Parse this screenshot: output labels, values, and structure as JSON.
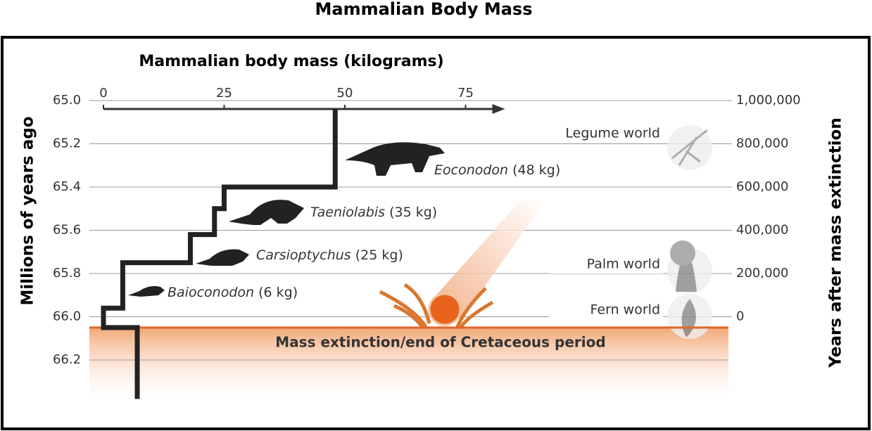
{
  "chart_data": {
    "type": "line",
    "title": "Mammalian Body Mass",
    "x_label": "Mammalian body mass (kilograms)",
    "y_label": "Millions of years ago",
    "y2_label": "Years after mass extinction",
    "xlim": [
      0,
      82
    ],
    "xticks": [
      0,
      25,
      50,
      75
    ],
    "ylim": [
      65.0,
      66.4
    ],
    "yticks": [
      {
        "value": 65.0,
        "label": "65.0"
      },
      {
        "value": 65.2,
        "label": "65.2"
      },
      {
        "value": 65.4,
        "label": "65.4"
      },
      {
        "value": 65.6,
        "label": "65.6"
      },
      {
        "value": 65.8,
        "label": "65.8"
      },
      {
        "value": 66.0,
        "label": "66.0"
      },
      {
        "value": 66.2,
        "label": "66.2"
      }
    ],
    "y2lim": [
      1000000,
      -400000
    ],
    "y2ticks": [
      {
        "value": 1000000,
        "label": "1,000,000"
      },
      {
        "value": 800000,
        "label": "800,000"
      },
      {
        "value": 600000,
        "label": "600,000"
      },
      {
        "value": 400000,
        "label": "400,000"
      },
      {
        "value": 200000,
        "label": "200,000"
      },
      0
    ],
    "grid": true,
    "series": [
      {
        "color": "#222222",
        "x": [
          7,
          7,
          0,
          0,
          4,
          4,
          18,
          18,
          23,
          23,
          25,
          25,
          48,
          48
        ],
        "values": [
          66.38,
          66.05,
          66.05,
          65.96,
          65.96,
          65.75,
          65.75,
          65.62,
          65.62,
          65.5,
          65.5,
          65.4,
          65.4,
          65.04
        ]
      }
    ],
    "extinction": {
      "label": "Mass extinction/end of Cretaceous period",
      "y": 66.05,
      "color": "#e0662a"
    },
    "animals": [
      {
        "name": "Eoconodon",
        "mass": "(48 kg)"
      },
      {
        "name": "Taeniolabis",
        "mass": "(35 kg)"
      },
      {
        "name": "Carsioptychus",
        "mass": "(25 kg)"
      },
      {
        "name": "Baioconodon",
        "mass": "(6 kg)"
      }
    ],
    "worlds": [
      "Legume world",
      "Palm world",
      "Fern world"
    ]
  }
}
